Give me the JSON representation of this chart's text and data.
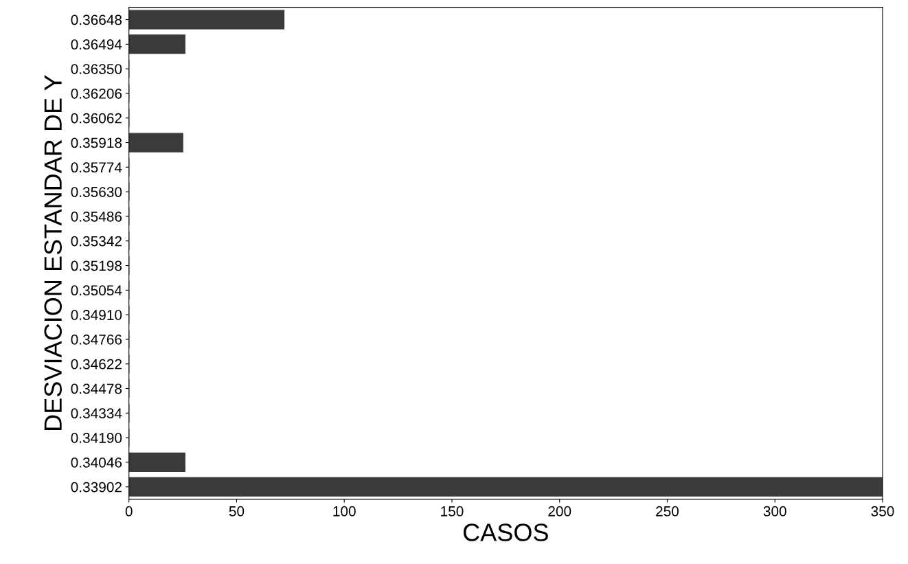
{
  "chart_data": {
    "type": "bar",
    "orientation": "horizontal",
    "xlabel": "CASOS",
    "ylabel": "DESVIACION ESTANDAR DE Y",
    "categories": [
      "0.36648",
      "0.36494",
      "0.36350",
      "0.36206",
      "0.36062",
      "0.35918",
      "0.35774",
      "0.35630",
      "0.35486",
      "0.35342",
      "0.35198",
      "0.35054",
      "0.34910",
      "0.34766",
      "0.34622",
      "0.34478",
      "0.34334",
      "0.34190",
      "0.34046",
      "0.33902"
    ],
    "values": [
      72,
      26,
      0,
      0,
      0,
      25,
      0,
      0,
      0,
      0,
      0,
      0,
      0,
      0,
      0,
      0,
      0,
      0,
      26,
      350
    ],
    "color": "#3a3a3a",
    "xlim": [
      0,
      350
    ],
    "xticks": [
      0,
      50,
      100,
      150,
      200,
      250,
      300,
      350
    ],
    "grid": false
  }
}
